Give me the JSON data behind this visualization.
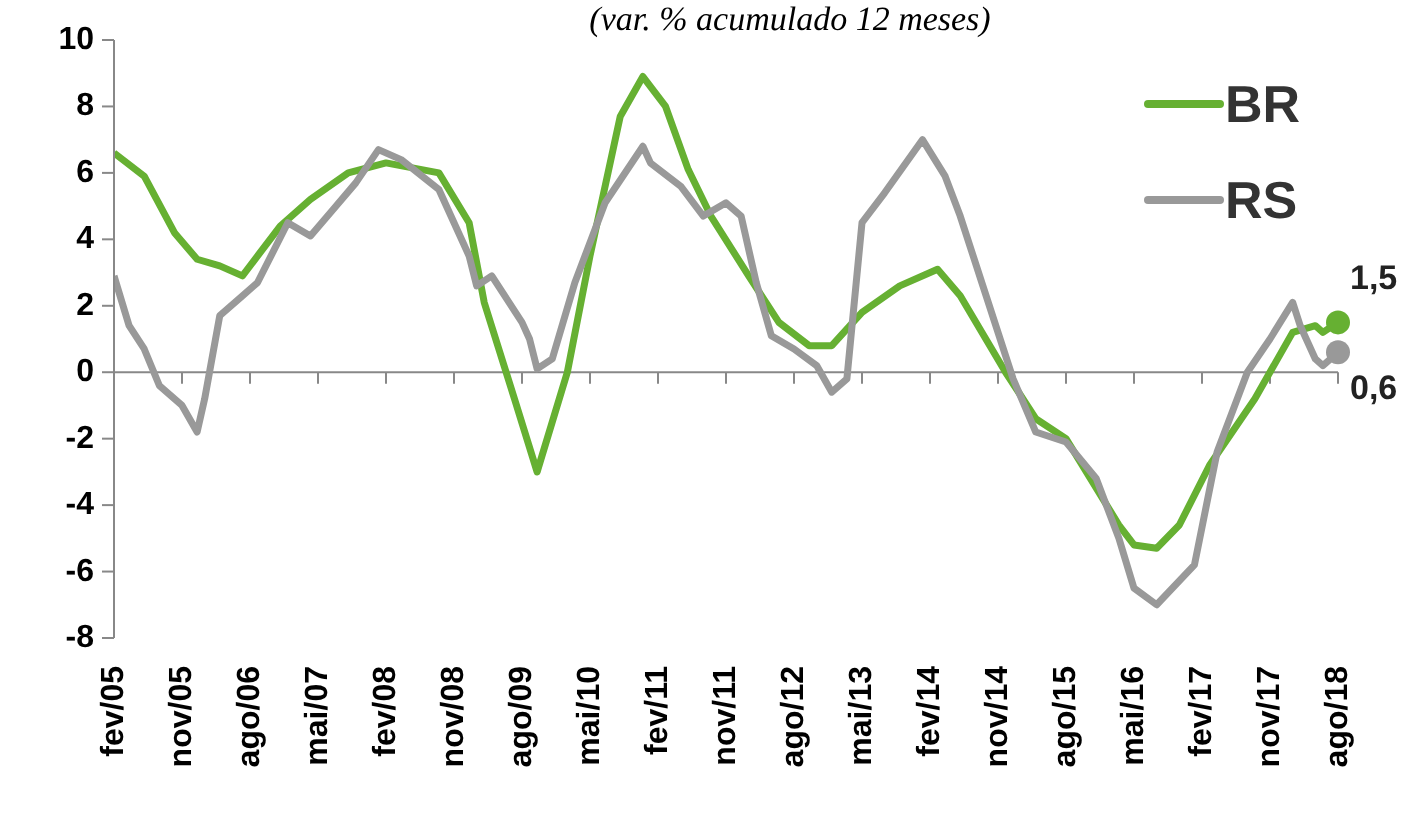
{
  "chart_data": {
    "type": "line",
    "subtitle": "(var. % acumulado 12 meses)",
    "series": [
      {
        "name": "BR",
        "color": "#66b032",
        "x": [
          "2005-02",
          "2005-06",
          "2005-10",
          "2006-01",
          "2006-04",
          "2006-07",
          "2006-12",
          "2007-04",
          "2007-09",
          "2008-02",
          "2008-09",
          "2009-01",
          "2009-03",
          "2009-07",
          "2009-10",
          "2010-02",
          "2010-05",
          "2010-09",
          "2010-12",
          "2011-03",
          "2011-06",
          "2011-09",
          "2012-02",
          "2012-06",
          "2012-10",
          "2013-01",
          "2013-05",
          "2013-10",
          "2014-03",
          "2014-06",
          "2014-12",
          "2015-04",
          "2015-08",
          "2016-03",
          "2016-05",
          "2016-08",
          "2016-11",
          "2017-03",
          "2017-09",
          "2018-02",
          "2018-05",
          "2018-06",
          "2018-08"
        ],
        "values": [
          6.6,
          5.9,
          4.2,
          3.4,
          3.2,
          2.9,
          4.4,
          5.2,
          6.0,
          6.3,
          6.0,
          4.5,
          2.1,
          -0.8,
          -3.0,
          0,
          3.5,
          7.7,
          8.9,
          8.0,
          6.1,
          4.7,
          2.9,
          1.5,
          0.8,
          0.8,
          1.8,
          2.6,
          3.1,
          2.3,
          0,
          -1.4,
          -2.0,
          -4.6,
          -5.2,
          -5.3,
          -4.6,
          -2.8,
          -0.8,
          1.2,
          1.4,
          1.2,
          1.5
        ]
      },
      {
        "name": "RS",
        "color": "#999999",
        "x": [
          "2005-02",
          "2005-04",
          "2005-06",
          "2005-08",
          "2005-11",
          "2006-01",
          "2006-02",
          "2006-04",
          "2006-07",
          "2006-09",
          "2007-01",
          "2007-04",
          "2007-07",
          "2007-10",
          "2008-01",
          "2008-04",
          "2008-09",
          "2009-01",
          "2009-02",
          "2009-04",
          "2009-08",
          "2009-09",
          "2009-10",
          "2009-12",
          "2010-03",
          "2010-07",
          "2010-12",
          "2011-01",
          "2011-05",
          "2011-08",
          "2011-11",
          "2012-01",
          "2012-03",
          "2012-05",
          "2012-08",
          "2012-11",
          "2013-01",
          "2013-03",
          "2013-05",
          "2013-08",
          "2014-01",
          "2014-04",
          "2014-06",
          "2014-09",
          "2015-01",
          "2015-04",
          "2015-08",
          "2015-12",
          "2016-03",
          "2016-05",
          "2016-08",
          "2017-01",
          "2017-04",
          "2017-08",
          "2017-11",
          "2018-02",
          "2018-03",
          "2018-05",
          "2018-06",
          "2018-08"
        ],
        "values": [
          2.9,
          1.4,
          0.7,
          -0.4,
          -1.0,
          -1.8,
          -0.8,
          1.7,
          2.3,
          2.7,
          4.5,
          4.1,
          4.9,
          5.7,
          6.7,
          6.4,
          5.5,
          3.5,
          2.6,
          2.9,
          1.5,
          1.0,
          0.1,
          0.4,
          2.7,
          5.1,
          6.8,
          6.3,
          5.6,
          4.7,
          5.1,
          4.7,
          2.7,
          1.1,
          0.7,
          0.2,
          -0.6,
          -0.2,
          4.5,
          5.4,
          7.0,
          5.9,
          4.7,
          2.6,
          -0.2,
          -1.8,
          -2.1,
          -3.2,
          -5.0,
          -6.5,
          -7.0,
          -5.8,
          -2.4,
          0,
          1.0,
          2.1,
          1.4,
          0.4,
          0.2,
          0.6
        ]
      }
    ],
    "annotations": [
      {
        "text": "1,5",
        "x": "2018-08",
        "y": 1.5
      },
      {
        "text": "0,6",
        "x": "2018-08",
        "y": 0.6
      }
    ],
    "xlim": [
      "2005-02",
      "2018-08"
    ],
    "xticks": [
      {
        "value": "2005-02",
        "label": "fev/05"
      },
      {
        "value": "2005-11",
        "label": "nov/05"
      },
      {
        "value": "2006-08",
        "label": "ago/06"
      },
      {
        "value": "2007-05",
        "label": "mai/07"
      },
      {
        "value": "2008-02",
        "label": "fev/08"
      },
      {
        "value": "2008-11",
        "label": "nov/08"
      },
      {
        "value": "2009-08",
        "label": "ago/09"
      },
      {
        "value": "2010-05",
        "label": "mai/10"
      },
      {
        "value": "2011-02",
        "label": "fev/11"
      },
      {
        "value": "2011-11",
        "label": "nov/11"
      },
      {
        "value": "2012-08",
        "label": "ago/12"
      },
      {
        "value": "2013-05",
        "label": "mai/13"
      },
      {
        "value": "2014-02",
        "label": "fev/14"
      },
      {
        "value": "2014-11",
        "label": "nov/14"
      },
      {
        "value": "2015-08",
        "label": "ago/15"
      },
      {
        "value": "2016-05",
        "label": "mai/16"
      },
      {
        "value": "2017-02",
        "label": "fev/17"
      },
      {
        "value": "2017-11",
        "label": "nov/17"
      },
      {
        "value": "2018-08",
        "label": "ago/18"
      }
    ],
    "ylim": [
      -8,
      10
    ],
    "yticks": [
      -8,
      -6,
      -4,
      -2,
      0,
      2,
      4,
      6,
      8,
      10
    ],
    "legend": "top right",
    "marker": "none",
    "line_style": "solid"
  }
}
